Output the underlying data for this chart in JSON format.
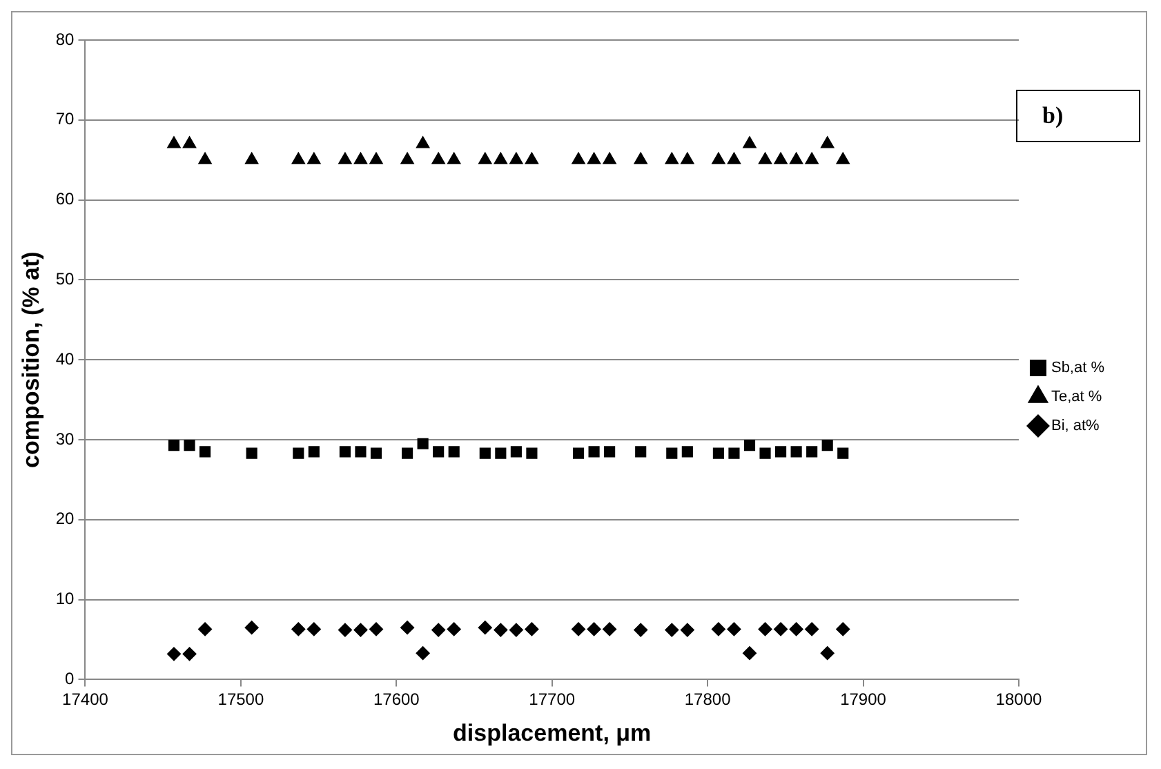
{
  "chart_data": {
    "type": "scatter",
    "xlabel": "displacement, μm",
    "ylabel": "composition, (% at)",
    "x": [
      17457,
      17467,
      17477,
      17507,
      17537,
      17547,
      17567,
      17577,
      17587,
      17607,
      17617,
      17627,
      17637,
      17657,
      17667,
      17677,
      17687,
      17717,
      17727,
      17737,
      17757,
      17777,
      17787,
      17807,
      17817,
      17827,
      17837,
      17847,
      17857,
      17867,
      17877,
      17887
    ],
    "series": [
      {
        "name": "Sb,at %",
        "color": "#000000",
        "marker": "square",
        "values": [
          29.3,
          29.3,
          28.5,
          28.3,
          28.3,
          28.5,
          28.5,
          28.5,
          28.3,
          28.3,
          29.5,
          28.5,
          28.5,
          28.3,
          28.3,
          28.5,
          28.3,
          28.3,
          28.5,
          28.5,
          28.5,
          28.3,
          28.5,
          28.3,
          28.3,
          29.3,
          28.3,
          28.5,
          28.5,
          28.5,
          29.3,
          28.3
        ]
      },
      {
        "name": "Te,at %",
        "color": "#000000",
        "marker": "triangle",
        "values": [
          67,
          67,
          65,
          65,
          65,
          65,
          65,
          65,
          65,
          65,
          67,
          65,
          65,
          65,
          65,
          65,
          65,
          65,
          65,
          65,
          65,
          65,
          65,
          65,
          65,
          67,
          65,
          65,
          65,
          65,
          67,
          65
        ]
      },
      {
        "name": "Bi, at%",
        "color": "#000000",
        "marker": "diamond",
        "values": [
          3.2,
          3.2,
          6.3,
          6.5,
          6.3,
          6.3,
          6.2,
          6.2,
          6.3,
          6.5,
          3.3,
          6.2,
          6.3,
          6.5,
          6.2,
          6.2,
          6.3,
          6.3,
          6.3,
          6.3,
          6.2,
          6.2,
          6.2,
          6.3,
          6.3,
          3.3,
          6.3,
          6.3,
          6.3,
          6.3,
          3.3,
          6.3
        ]
      }
    ],
    "xlim": [
      17400,
      18000
    ],
    "xticks": [
      17400,
      17500,
      17600,
      17700,
      17800,
      17900,
      18000
    ],
    "ylim": [
      0,
      80
    ],
    "yticks": [
      0,
      10,
      20,
      30,
      40,
      50,
      60,
      70,
      80
    ],
    "grid": "y",
    "legend": "right",
    "annotations": [
      "b)"
    ]
  }
}
